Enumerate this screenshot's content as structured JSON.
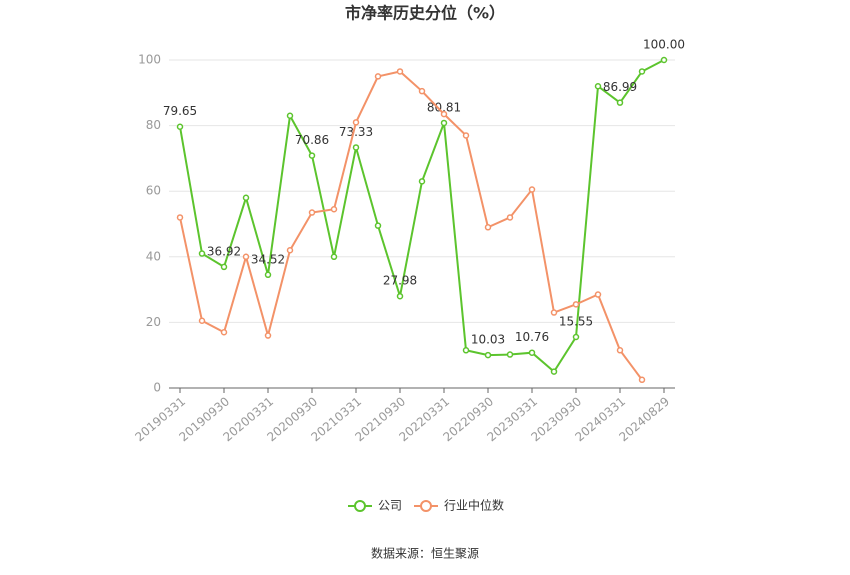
{
  "chart_data": {
    "type": "line",
    "title": "市净率历史分位（%）",
    "categories": [
      "20190331",
      null,
      "20190930",
      null,
      "20200331",
      null,
      "20200930",
      null,
      "20210331",
      null,
      "20210930",
      null,
      "20220331",
      null,
      "20220930",
      null,
      "20230331",
      null,
      "20230930",
      null,
      "20240331",
      null,
      "20240829"
    ],
    "series": [
      {
        "name": "公司",
        "color": "#5cc42d",
        "values": [
          79.65,
          41,
          36.92,
          58,
          34.52,
          83,
          70.86,
          40,
          73.33,
          49.5,
          27.98,
          63,
          80.81,
          11.5,
          10.03,
          10.2,
          10.76,
          5,
          15.55,
          92,
          86.99,
          96.5,
          100
        ],
        "value_labels": [
          "79.65",
          null,
          "36.92",
          null,
          "34.52",
          null,
          "70.86",
          null,
          "73.33",
          null,
          "27.98",
          null,
          "80.81",
          null,
          "10.03",
          null,
          "10.76",
          null,
          "15.55",
          null,
          "86.99",
          null,
          "100.00"
        ]
      },
      {
        "name": "行业中位数",
        "color": "#f39268",
        "values": [
          52,
          20.5,
          17,
          40,
          16,
          42,
          53.5,
          54.5,
          81,
          95,
          96.5,
          90.5,
          83.5,
          77,
          49,
          52,
          60.5,
          23,
          25.5,
          28.5,
          11.5,
          2.5,
          null
        ]
      }
    ],
    "ylim": [
      0,
      100
    ],
    "yticks": [
      0,
      20,
      40,
      60,
      80,
      100
    ],
    "grid": true,
    "source": "数据来源：恒生聚源"
  }
}
